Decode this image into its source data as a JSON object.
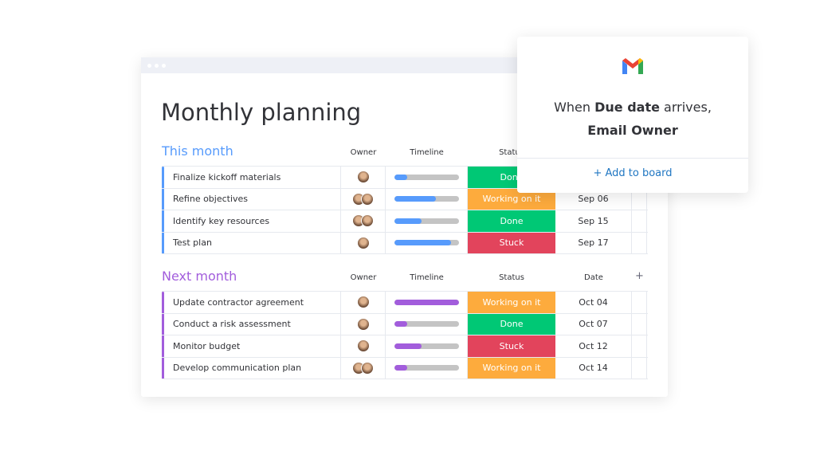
{
  "title": "Monthly planning",
  "columns": {
    "owner": "Owner",
    "timeline": "Timeline",
    "status": "Status",
    "date": "Date",
    "add": "+"
  },
  "colors": {
    "done": "#00c875",
    "working": "#fdab3d",
    "stuck": "#e2445c",
    "this_month": "#579bfc",
    "next_month": "#a25ddc"
  },
  "groups": [
    {
      "name": "This month",
      "color": "#579bfc",
      "rows": [
        {
          "name": "Finalize kickoff materials",
          "owners": 1,
          "timeline": 0.2,
          "status": "Done",
          "date": ""
        },
        {
          "name": "Refine objectives",
          "owners": 2,
          "timeline": 0.65,
          "status": "Working on it",
          "date": "Sep 06"
        },
        {
          "name": "Identify key resources",
          "owners": 2,
          "timeline": 0.43,
          "status": "Done",
          "date": "Sep 15"
        },
        {
          "name": "Test plan",
          "owners": 1,
          "timeline": 0.88,
          "status": "Stuck",
          "date": "Sep 17"
        }
      ]
    },
    {
      "name": "Next month",
      "color": "#a25ddc",
      "rows": [
        {
          "name": "Update contractor agreement",
          "owners": 1,
          "timeline": 1.0,
          "status": "Working on it",
          "date": "Oct 04"
        },
        {
          "name": "Conduct a risk assessment",
          "owners": 1,
          "timeline": 0.2,
          "status": "Done",
          "date": "Oct 07"
        },
        {
          "name": "Monitor budget",
          "owners": 1,
          "timeline": 0.43,
          "status": "Stuck",
          "date": "Oct 12"
        },
        {
          "name": "Develop communication plan",
          "owners": 2,
          "timeline": 0.2,
          "status": "Working on it",
          "date": "Oct 14"
        }
      ]
    }
  ],
  "popup": {
    "icon": "gmail-icon",
    "pre": "When ",
    "bold1": "Due date",
    "post": " arrives,",
    "line2": "Email Owner",
    "action": "+ Add to board"
  }
}
